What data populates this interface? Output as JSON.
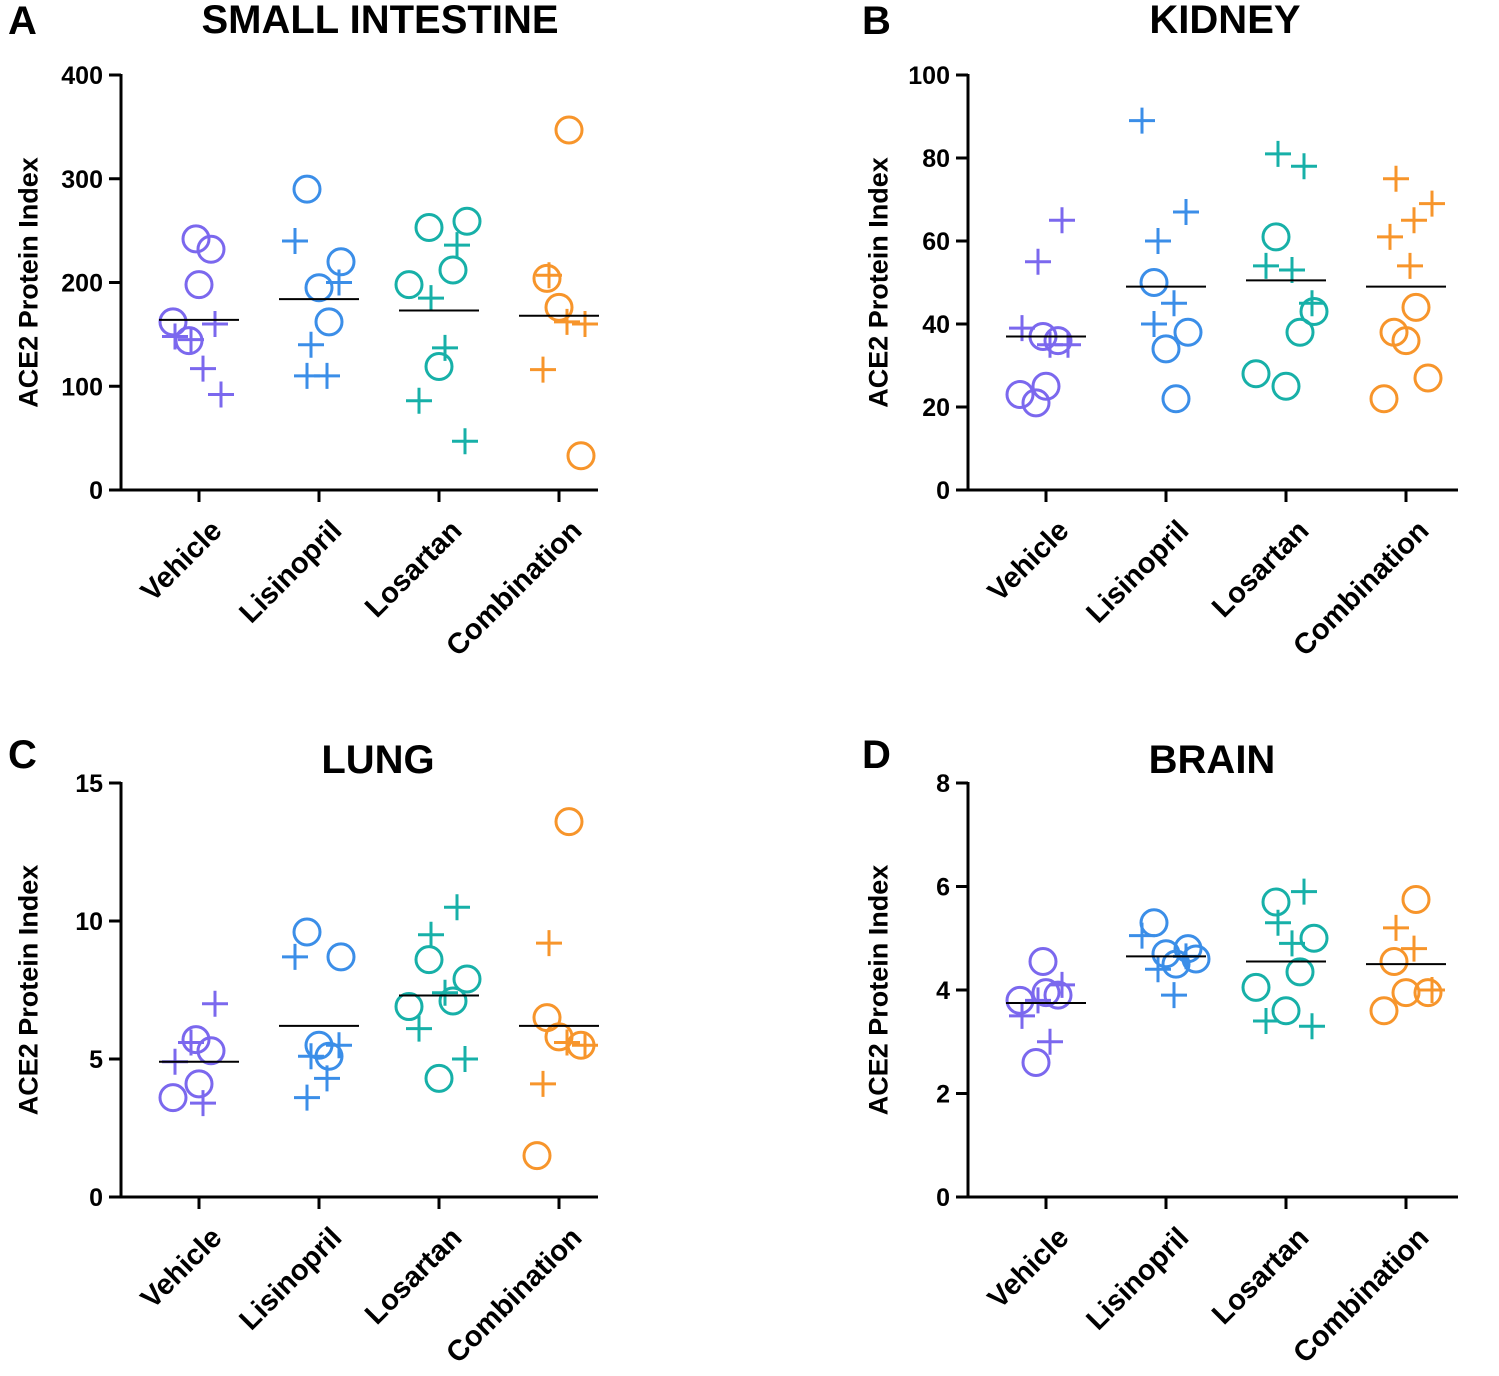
{
  "colors": {
    "Vehicle": "#7b68ee",
    "Lisinopril": "#3b8ee8",
    "Losartan": "#17b0a8",
    "Combination": "#f7952b"
  },
  "marker_legend": {
    "circle": "open circle marker",
    "plus": "plus marker"
  },
  "chart_data": [
    {
      "panel": "A",
      "title": "SMALL INTESTINE",
      "type": "scatter",
      "ylabel": "ACE2 Protein Index",
      "ylim": [
        0,
        400
      ],
      "yticks": [
        0,
        100,
        200,
        300,
        400
      ],
      "categories": [
        "Vehicle",
        "Lisinopril",
        "Losartan",
        "Combination"
      ],
      "means": [
        164,
        184,
        173,
        168
      ],
      "groups": [
        {
          "name": "Vehicle",
          "circles": [
            242,
            232,
            198,
            162,
            144
          ],
          "pluses": [
            160,
            145,
            148,
            117,
            92
          ]
        },
        {
          "name": "Lisinopril",
          "circles": [
            290,
            220,
            195,
            162
          ],
          "pluses": [
            240,
            200,
            140,
            110,
            110
          ]
        },
        {
          "name": "Losartan",
          "circles": [
            253,
            259,
            212,
            198,
            119
          ],
          "pluses": [
            236,
            185,
            137,
            86,
            47
          ]
        },
        {
          "name": "Combination",
          "circles": [
            347,
            204,
            176,
            33
          ],
          "pluses": [
            207,
            162,
            160,
            116
          ]
        }
      ]
    },
    {
      "panel": "B",
      "title": "KIDNEY",
      "type": "scatter",
      "ylabel": "ACE2 Protein Index",
      "ylim": [
        0,
        100
      ],
      "yticks": [
        0,
        20,
        40,
        60,
        80,
        100
      ],
      "categories": [
        "Vehicle",
        "Lisinopril",
        "Losartan",
        "Combination"
      ],
      "means": [
        37,
        49,
        50.5,
        49
      ],
      "groups": [
        {
          "name": "Vehicle",
          "circles": [
            37,
            36,
            25,
            23,
            21
          ],
          "pluses": [
            65,
            55,
            39,
            35,
            35
          ]
        },
        {
          "name": "Lisinopril",
          "circles": [
            50,
            38,
            34,
            22
          ],
          "pluses": [
            89,
            67,
            60,
            45,
            40
          ]
        },
        {
          "name": "Losartan",
          "circles": [
            61,
            43,
            38,
            28,
            25
          ],
          "pluses": [
            78,
            81,
            53,
            54,
            45
          ]
        },
        {
          "name": "Combination",
          "circles": [
            44,
            38,
            36,
            27,
            22
          ],
          "pluses": [
            75,
            65,
            69,
            61,
            54
          ]
        }
      ]
    },
    {
      "panel": "C",
      "title": "LUNG",
      "type": "scatter",
      "ylabel": "ACE2 Protein Index",
      "ylim": [
        0,
        15
      ],
      "yticks": [
        0,
        5,
        10,
        15
      ],
      "categories": [
        "Vehicle",
        "Lisinopril",
        "Losartan",
        "Combination"
      ],
      "means": [
        4.9,
        6.2,
        7.3,
        6.2
      ],
      "groups": [
        {
          "name": "Vehicle",
          "circles": [
            5.7,
            5.3,
            4.1,
            3.6
          ],
          "pluses": [
            7.0,
            5.6,
            4.9,
            3.4
          ]
        },
        {
          "name": "Lisinopril",
          "circles": [
            9.6,
            8.7,
            5.5,
            5.1
          ],
          "pluses": [
            8.7,
            5.5,
            5.1,
            4.3,
            3.6
          ]
        },
        {
          "name": "Losartan",
          "circles": [
            8.6,
            7.9,
            7.1,
            6.9,
            4.3
          ],
          "pluses": [
            10.5,
            9.5,
            7.4,
            6.1,
            5.0
          ]
        },
        {
          "name": "Combination",
          "circles": [
            13.6,
            6.5,
            5.8,
            5.5,
            1.5
          ],
          "pluses": [
            9.2,
            5.6,
            5.5,
            4.1
          ]
        }
      ]
    },
    {
      "panel": "D",
      "title": "BRAIN",
      "type": "scatter",
      "ylabel": "ACE2 Protein Index",
      "ylim": [
        0,
        8
      ],
      "yticks": [
        0,
        2,
        4,
        6,
        8
      ],
      "categories": [
        "Vehicle",
        "Lisinopril",
        "Losartan",
        "Combination"
      ],
      "means": [
        3.75,
        4.65,
        4.55,
        4.5
      ],
      "groups": [
        {
          "name": "Vehicle",
          "circles": [
            4.55,
            3.9,
            3.95,
            3.8,
            2.6
          ],
          "pluses": [
            4.1,
            3.8,
            3.5,
            3.0
          ]
        },
        {
          "name": "Lisinopril",
          "circles": [
            5.3,
            4.8,
            4.7,
            4.5,
            4.6
          ],
          "pluses": [
            5.05,
            4.65,
            4.4,
            3.9
          ]
        },
        {
          "name": "Losartan",
          "circles": [
            5.7,
            5.0,
            4.35,
            4.05,
            3.6
          ],
          "pluses": [
            5.9,
            5.3,
            4.9,
            3.4,
            3.3
          ]
        },
        {
          "name": "Combination",
          "circles": [
            5.75,
            4.55,
            3.95,
            3.95,
            3.6
          ],
          "pluses": [
            5.2,
            4.8,
            4.0
          ]
        }
      ]
    }
  ]
}
